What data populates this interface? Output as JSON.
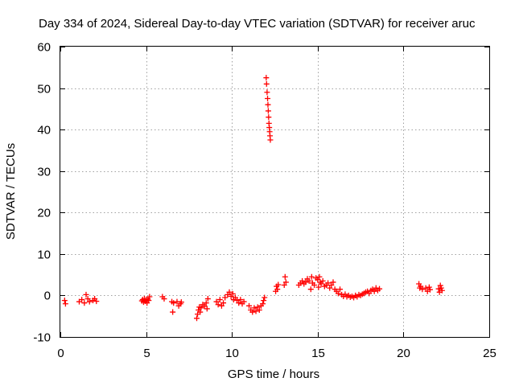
{
  "chart_data": {
    "type": "scatter",
    "title": "Day 334 of 2024, Sidereal Day-to-day VTEC variation (SDTVAR) for receiver aruc",
    "xlabel": "GPS time / hours",
    "ylabel": "SDTVAR / TECUs",
    "xlim": [
      0,
      25
    ],
    "ylim": [
      -10,
      60
    ],
    "xticks": [
      0,
      5,
      10,
      15,
      20,
      25
    ],
    "yticks": [
      -10,
      0,
      10,
      20,
      30,
      40,
      50,
      60
    ],
    "grid": true,
    "marker": "+",
    "color": "#ff0000",
    "series": [
      {
        "name": "SDTVAR",
        "points": [
          [
            0.25,
            -1.2
          ],
          [
            0.3,
            -2.0
          ],
          [
            1.1,
            -1.5
          ],
          [
            1.25,
            -1.0
          ],
          [
            1.4,
            -1.8
          ],
          [
            1.5,
            0.2
          ],
          [
            1.6,
            -0.8
          ],
          [
            1.7,
            -1.5
          ],
          [
            1.9,
            -1.2
          ],
          [
            2.0,
            -0.8
          ],
          [
            2.1,
            -1.4
          ],
          [
            4.75,
            -1.3
          ],
          [
            4.8,
            -1.0
          ],
          [
            4.85,
            -1.6
          ],
          [
            4.9,
            -0.8
          ],
          [
            4.95,
            -1.4
          ],
          [
            5.0,
            -1.0
          ],
          [
            5.05,
            -1.8
          ],
          [
            5.1,
            -0.9
          ],
          [
            5.2,
            -0.3
          ],
          [
            5.15,
            -1.2
          ],
          [
            5.95,
            -0.3
          ],
          [
            6.05,
            -0.8
          ],
          [
            6.5,
            -1.5
          ],
          [
            6.55,
            -4.0
          ],
          [
            6.6,
            -1.8
          ],
          [
            6.8,
            -1.5
          ],
          [
            6.9,
            -2.5
          ],
          [
            7.0,
            -2.0
          ],
          [
            7.05,
            -1.6
          ],
          [
            7.95,
            -5.5
          ],
          [
            8.0,
            -4.5
          ],
          [
            8.05,
            -3.5
          ],
          [
            8.1,
            -2.8
          ],
          [
            8.15,
            -4.0
          ],
          [
            8.2,
            -3.0
          ],
          [
            8.3,
            -2.2
          ],
          [
            8.4,
            -2.6
          ],
          [
            8.5,
            -1.8
          ],
          [
            8.55,
            -3.2
          ],
          [
            8.6,
            -0.8
          ],
          [
            9.1,
            -1.5
          ],
          [
            9.2,
            -2.2
          ],
          [
            9.3,
            -1.0
          ],
          [
            9.4,
            -2.5
          ],
          [
            9.5,
            -1.8
          ],
          [
            9.6,
            -0.5
          ],
          [
            9.75,
            0.2
          ],
          [
            9.85,
            0.8
          ],
          [
            9.95,
            -0.2
          ],
          [
            10.05,
            0.4
          ],
          [
            10.1,
            -1.0
          ],
          [
            10.2,
            -0.5
          ],
          [
            10.3,
            -1.2
          ],
          [
            10.4,
            -1.8
          ],
          [
            10.5,
            -1.0
          ],
          [
            10.6,
            -2.0
          ],
          [
            10.7,
            -1.5
          ],
          [
            11.0,
            -2.5
          ],
          [
            11.1,
            -3.5
          ],
          [
            11.2,
            -4.0
          ],
          [
            11.3,
            -3.0
          ],
          [
            11.4,
            -3.8
          ],
          [
            11.5,
            -2.8
          ],
          [
            11.6,
            -3.5
          ],
          [
            11.7,
            -2.5
          ],
          [
            11.8,
            -2.0
          ],
          [
            11.85,
            -1.2
          ],
          [
            11.9,
            -0.5
          ],
          [
            12.0,
            52.5
          ],
          [
            12.02,
            51.0
          ],
          [
            12.05,
            49.0
          ],
          [
            12.08,
            47.5
          ],
          [
            12.1,
            46.0
          ],
          [
            12.12,
            44.5
          ],
          [
            12.14,
            43.0
          ],
          [
            12.16,
            41.5
          ],
          [
            12.18,
            40.5
          ],
          [
            12.2,
            39.5
          ],
          [
            12.22,
            38.5
          ],
          [
            12.24,
            37.5
          ],
          [
            12.55,
            1.0
          ],
          [
            12.6,
            2.2
          ],
          [
            12.65,
            1.5
          ],
          [
            12.7,
            2.6
          ],
          [
            13.05,
            2.5
          ],
          [
            13.1,
            4.5
          ],
          [
            13.15,
            3.2
          ],
          [
            13.9,
            2.5
          ],
          [
            14.0,
            3.0
          ],
          [
            14.1,
            3.5
          ],
          [
            14.2,
            2.8
          ],
          [
            14.3,
            3.2
          ],
          [
            14.4,
            4.0
          ],
          [
            14.5,
            3.5
          ],
          [
            14.6,
            1.5
          ],
          [
            14.65,
            4.5
          ],
          [
            14.7,
            3.0
          ],
          [
            14.8,
            2.5
          ],
          [
            14.9,
            4.2
          ],
          [
            15.0,
            3.8
          ],
          [
            15.05,
            2.0
          ],
          [
            15.1,
            4.5
          ],
          [
            15.15,
            3.2
          ],
          [
            15.2,
            2.8
          ],
          [
            15.3,
            3.5
          ],
          [
            15.4,
            2.2
          ],
          [
            15.5,
            2.5
          ],
          [
            15.6,
            3.0
          ],
          [
            15.7,
            1.8
          ],
          [
            15.8,
            2.5
          ],
          [
            15.9,
            3.2
          ],
          [
            16.0,
            1.5
          ],
          [
            16.1,
            1.0
          ],
          [
            16.2,
            0.5
          ],
          [
            16.3,
            1.5
          ],
          [
            16.4,
            0.2
          ],
          [
            16.5,
            -0.2
          ],
          [
            16.6,
            0.3
          ],
          [
            16.7,
            -0.3
          ],
          [
            16.8,
            0.0
          ],
          [
            16.9,
            -0.4
          ],
          [
            17.0,
            -0.2
          ],
          [
            17.1,
            -0.5
          ],
          [
            17.2,
            0.0
          ],
          [
            17.3,
            -0.3
          ],
          [
            17.4,
            0.2
          ],
          [
            17.5,
            0.0
          ],
          [
            17.6,
            0.3
          ],
          [
            17.7,
            0.5
          ],
          [
            17.8,
            0.8
          ],
          [
            17.9,
            1.0
          ],
          [
            18.0,
            0.5
          ],
          [
            18.1,
            1.2
          ],
          [
            18.2,
            1.5
          ],
          [
            18.3,
            1.0
          ],
          [
            18.4,
            1.8
          ],
          [
            18.5,
            1.2
          ],
          [
            18.6,
            1.6
          ],
          [
            20.9,
            2.8
          ],
          [
            20.95,
            1.8
          ],
          [
            21.0,
            2.2
          ],
          [
            21.1,
            1.5
          ],
          [
            21.3,
            1.8
          ],
          [
            21.4,
            1.0
          ],
          [
            21.5,
            2.0
          ],
          [
            21.55,
            1.4
          ],
          [
            22.05,
            1.6
          ],
          [
            22.1,
            0.8
          ],
          [
            22.15,
            2.4
          ],
          [
            22.2,
            1.8
          ],
          [
            22.25,
            1.2
          ]
        ]
      }
    ]
  }
}
